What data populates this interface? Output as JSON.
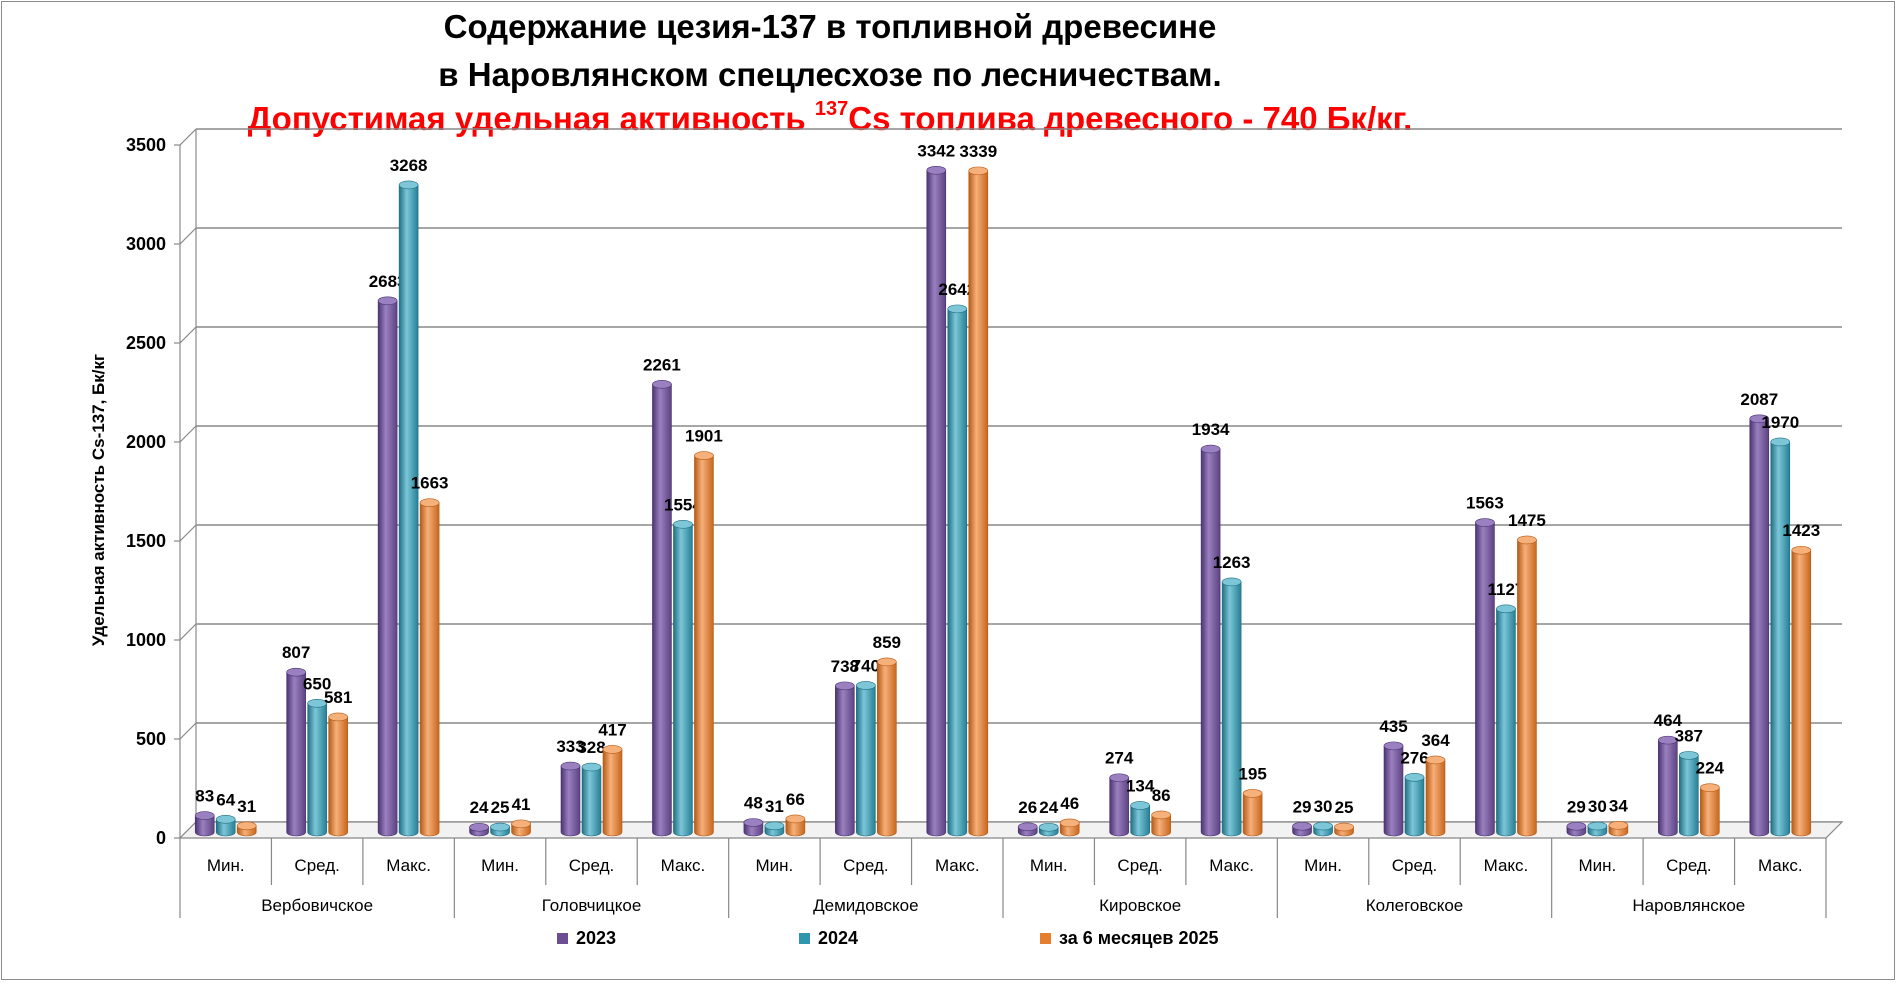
{
  "title": {
    "line1": "Содержание цезия-137 в топливной древесине",
    "line2": "в Наровлянском спецлесхозе по лесничествам.",
    "line3_prefix": "Допустимая удельная активность ",
    "line3_sup": "137",
    "line3_suffix": "Cs топлива древесного - 740 Бк/кг."
  },
  "colors": {
    "2023": "#6c4f93",
    "2024": "#3096ae",
    "2025": "#e57e2e",
    "grid": "#808080",
    "label": "#000000"
  },
  "chart_data": {
    "type": "bar",
    "ylabel": "Удельная активность Cs-137, Бк/кг",
    "ylim": [
      0,
      3500
    ],
    "yticks": [
      0,
      500,
      1000,
      1500,
      2000,
      2500,
      3000,
      3500
    ],
    "grid": true,
    "legend_position": "bottom",
    "groups": [
      "Вербовичское",
      "Головчицкое",
      "Демидовское",
      "Кировское",
      "Колеговское",
      "Наровлянское"
    ],
    "subcategories": [
      "Мин.",
      "Сред.",
      "Макс."
    ],
    "series": [
      {
        "name": "2023",
        "values": [
          83,
          807,
          2683,
          24,
          333,
          2261,
          48,
          738,
          3342,
          26,
          274,
          1934,
          29,
          435,
          1563,
          29,
          464,
          2087
        ]
      },
      {
        "name": "2024",
        "values": [
          64,
          650,
          3268,
          25,
          328,
          1554,
          31,
          740,
          2642,
          24,
          134,
          1263,
          30,
          276,
          1127,
          30,
          387,
          1970
        ]
      },
      {
        "name": "за 6 месяцев 2025",
        "values": [
          31,
          581,
          1663,
          41,
          417,
          1901,
          66,
          859,
          3339,
          46,
          86,
          195,
          25,
          364,
          1475,
          34,
          224,
          1423
        ]
      }
    ]
  }
}
